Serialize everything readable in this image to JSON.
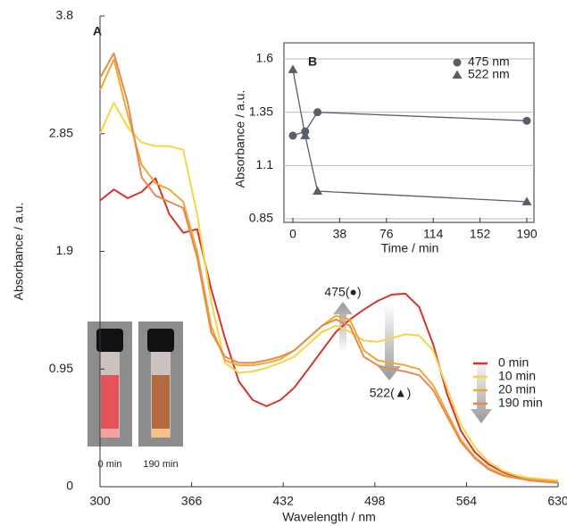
{
  "chart_data": [
    {
      "type": "line",
      "panel_label": "A",
      "x_label": "Wavelength / nm",
      "y_label": "Absorbance / a.u.",
      "x": [
        300,
        310,
        320,
        330,
        340,
        350,
        360,
        370,
        380,
        390,
        400,
        410,
        420,
        430,
        440,
        450,
        460,
        470,
        480,
        490,
        500,
        510,
        520,
        530,
        540,
        550,
        560,
        570,
        580,
        590,
        600,
        610,
        620,
        630
      ],
      "xlim": [
        300,
        630
      ],
      "xticks": [
        300,
        366,
        432,
        498,
        564,
        630
      ],
      "ylim": [
        0,
        3.8
      ],
      "yticks": [
        0,
        0.95,
        1.9,
        2.85,
        3.8
      ],
      "grid": false,
      "legend": "lower right",
      "series": [
        {
          "name": "0 min",
          "color": "#d8342a",
          "values": [
            2.31,
            2.4,
            2.33,
            2.38,
            2.49,
            2.2,
            2.05,
            2.08,
            1.6,
            1.2,
            0.85,
            0.7,
            0.65,
            0.7,
            0.8,
            0.95,
            1.1,
            1.25,
            1.35,
            1.43,
            1.5,
            1.55,
            1.56,
            1.45,
            1.15,
            0.75,
            0.45,
            0.28,
            0.18,
            0.12,
            0.08,
            0.06,
            0.05,
            0.04
          ]
        },
        {
          "name": "10 min",
          "color": "#f5d548",
          "values": [
            2.85,
            3.1,
            2.9,
            2.78,
            2.75,
            2.75,
            2.72,
            2.2,
            1.5,
            1.0,
            0.92,
            0.93,
            0.96,
            1.0,
            1.05,
            1.15,
            1.25,
            1.3,
            1.25,
            1.18,
            1.17,
            1.2,
            1.23,
            1.22,
            1.1,
            0.8,
            0.5,
            0.32,
            0.2,
            0.13,
            0.09,
            0.07,
            0.06,
            0.05
          ]
        },
        {
          "name": "20 min",
          "color": "#f0a835",
          "values": [
            3.2,
            3.45,
            3.0,
            2.6,
            2.45,
            2.4,
            2.3,
            1.9,
            1.3,
            1.02,
            0.98,
            0.98,
            1.0,
            1.03,
            1.1,
            1.2,
            1.3,
            1.38,
            1.35,
            1.1,
            1.02,
            1.0,
            0.98,
            0.95,
            0.82,
            0.6,
            0.38,
            0.24,
            0.15,
            0.1,
            0.07,
            0.06,
            0.05,
            0.04
          ]
        },
        {
          "name": "190 min",
          "color": "#e58a4e",
          "values": [
            3.3,
            3.5,
            3.1,
            2.5,
            2.35,
            2.3,
            2.25,
            1.85,
            1.25,
            1.05,
            1.0,
            1.0,
            1.02,
            1.05,
            1.1,
            1.2,
            1.3,
            1.35,
            1.3,
            1.05,
            0.98,
            0.95,
            0.93,
            0.9,
            0.78,
            0.57,
            0.36,
            0.23,
            0.14,
            0.09,
            0.07,
            0.05,
            0.04,
            0.03
          ]
        }
      ],
      "annotations": [
        "475(●)",
        "522(▲)",
        "0 min",
        "190 min"
      ]
    },
    {
      "type": "line",
      "panel_label": "B",
      "x_label": "Time / min",
      "y_label": "Absorbance / a.u.",
      "x": [
        0,
        10,
        20,
        190
      ],
      "xlim": [
        0,
        190
      ],
      "xticks": [
        0,
        38,
        76,
        114,
        152,
        190
      ],
      "ylim": [
        0.85,
        1.6
      ],
      "yticks": [
        0.85,
        1.1,
        1.35,
        1.6
      ],
      "grid": true,
      "legend": "upper right",
      "series": [
        {
          "name": "475 nm",
          "color": "#5a5e6b",
          "marker": "circle",
          "values": [
            1.24,
            1.26,
            1.35,
            1.31
          ]
        },
        {
          "name": "522 nm",
          "color": "#5a5e6b",
          "marker": "triangle",
          "values": [
            1.55,
            1.24,
            0.98,
            0.93
          ]
        }
      ]
    }
  ]
}
